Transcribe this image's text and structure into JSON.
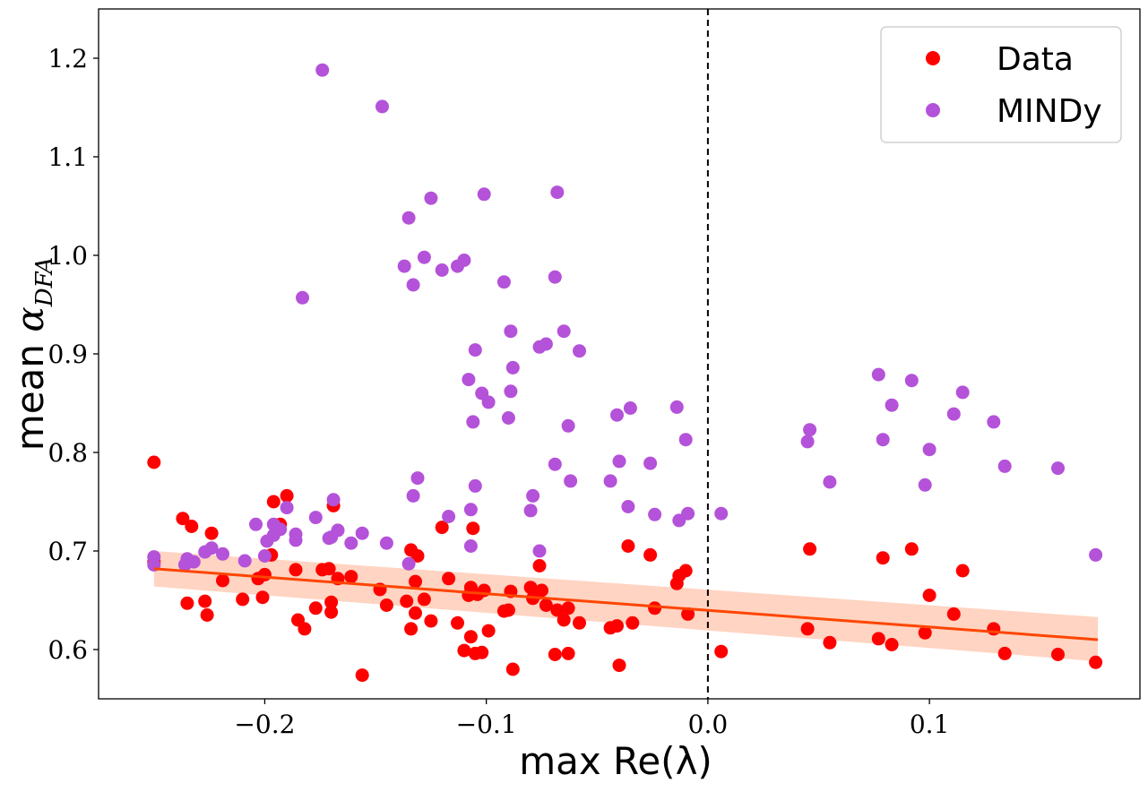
{
  "chart_data": {
    "type": "scatter",
    "title": "",
    "xlabel": "max Re(λ)",
    "ylabel_prefix": "mean ",
    "ylabel_symbol": "α",
    "ylabel_subscript": "DFA",
    "xlim": [
      -0.275,
      0.195
    ],
    "ylim": [
      0.55,
      1.25
    ],
    "xticks": [
      -0.2,
      -0.1,
      0.0,
      0.1
    ],
    "xtick_labels": [
      "−0.2",
      "−0.1",
      "0.0",
      "0.1"
    ],
    "yticks": [
      0.6,
      0.7,
      0.8,
      0.9,
      1.0,
      1.1,
      1.2
    ],
    "ytick_labels": [
      "0.6",
      "0.7",
      "0.8",
      "0.9",
      "1.0",
      "1.1",
      "1.2"
    ],
    "grid": false,
    "legend_position": "top-right",
    "vline": {
      "x": 0.0,
      "style": "dashed",
      "color": "#000000"
    },
    "fit": {
      "x_range": [
        -0.25,
        0.176
      ],
      "y_range": [
        0.682,
        0.61
      ],
      "ci_upper": [
        0.7,
        0.633
      ],
      "ci_lower": [
        0.664,
        0.588
      ],
      "line_color": "#ff4500",
      "band_color": "#ffc5ad"
    },
    "series": [
      {
        "name": "Data",
        "color": "#ff0000",
        "points": [
          [
            -0.25,
            0.79
          ],
          [
            -0.25,
            0.689
          ],
          [
            -0.237,
            0.733
          ],
          [
            -0.235,
            0.647
          ],
          [
            -0.233,
            0.725
          ],
          [
            -0.227,
            0.649
          ],
          [
            -0.226,
            0.635
          ],
          [
            -0.224,
            0.718
          ],
          [
            -0.219,
            0.67
          ],
          [
            -0.21,
            0.651
          ],
          [
            -0.203,
            0.672
          ],
          [
            -0.201,
            0.653
          ],
          [
            -0.2,
            0.676
          ],
          [
            -0.197,
            0.696
          ],
          [
            -0.196,
            0.75
          ],
          [
            -0.193,
            0.727
          ],
          [
            -0.19,
            0.756
          ],
          [
            -0.186,
            0.681
          ],
          [
            -0.185,
            0.63
          ],
          [
            -0.182,
            0.621
          ],
          [
            -0.177,
            0.642
          ],
          [
            -0.174,
            0.681
          ],
          [
            -0.171,
            0.682
          ],
          [
            -0.17,
            0.648
          ],
          [
            -0.17,
            0.638
          ],
          [
            -0.169,
            0.746
          ],
          [
            -0.167,
            0.672
          ],
          [
            -0.161,
            0.674
          ],
          [
            -0.156,
            0.574
          ],
          [
            -0.148,
            0.661
          ],
          [
            -0.145,
            0.645
          ],
          [
            -0.136,
            0.649
          ],
          [
            -0.134,
            0.701
          ],
          [
            -0.134,
            0.621
          ],
          [
            -0.132,
            0.669
          ],
          [
            -0.132,
            0.637
          ],
          [
            -0.131,
            0.695
          ],
          [
            -0.128,
            0.651
          ],
          [
            -0.125,
            0.629
          ],
          [
            -0.12,
            0.724
          ],
          [
            -0.117,
            0.672
          ],
          [
            -0.113,
            0.627
          ],
          [
            -0.11,
            0.599
          ],
          [
            -0.108,
            0.655
          ],
          [
            -0.107,
            0.613
          ],
          [
            -0.107,
            0.663
          ],
          [
            -0.106,
            0.723
          ],
          [
            -0.105,
            0.596
          ],
          [
            -0.104,
            0.656
          ],
          [
            -0.102,
            0.597
          ],
          [
            -0.101,
            0.66
          ],
          [
            -0.099,
            0.619
          ],
          [
            -0.092,
            0.639
          ],
          [
            -0.09,
            0.64
          ],
          [
            -0.089,
            0.659
          ],
          [
            -0.088,
            0.58
          ],
          [
            -0.08,
            0.663
          ],
          [
            -0.079,
            0.652
          ],
          [
            -0.077,
            0.657
          ],
          [
            -0.076,
            0.685
          ],
          [
            -0.075,
            0.66
          ],
          [
            -0.073,
            0.645
          ],
          [
            -0.069,
            0.595
          ],
          [
            -0.068,
            0.64
          ],
          [
            -0.065,
            0.63
          ],
          [
            -0.063,
            0.596
          ],
          [
            -0.063,
            0.642
          ],
          [
            -0.058,
            0.627
          ],
          [
            -0.044,
            0.622
          ],
          [
            -0.041,
            0.624
          ],
          [
            -0.04,
            0.584
          ],
          [
            -0.036,
            0.705
          ],
          [
            -0.034,
            0.627
          ],
          [
            -0.026,
            0.696
          ],
          [
            -0.024,
            0.642
          ],
          [
            -0.014,
            0.667
          ],
          [
            -0.013,
            0.675
          ],
          [
            -0.01,
            0.68
          ],
          [
            -0.009,
            0.636
          ],
          [
            0.006,
            0.598
          ],
          [
            0.045,
            0.621
          ],
          [
            0.046,
            0.702
          ],
          [
            0.055,
            0.607
          ],
          [
            0.077,
            0.611
          ],
          [
            0.079,
            0.693
          ],
          [
            0.083,
            0.605
          ],
          [
            0.092,
            0.702
          ],
          [
            0.098,
            0.617
          ],
          [
            0.1,
            0.655
          ],
          [
            0.111,
            0.636
          ],
          [
            0.115,
            0.68
          ],
          [
            0.129,
            0.621
          ],
          [
            0.134,
            0.596
          ],
          [
            0.158,
            0.595
          ],
          [
            0.175,
            0.587
          ]
        ]
      },
      {
        "name": "MINDy",
        "color": "#b452d9",
        "points": [
          [
            -0.25,
            0.694
          ],
          [
            -0.25,
            0.686
          ],
          [
            -0.236,
            0.686
          ],
          [
            -0.235,
            0.692
          ],
          [
            -0.232,
            0.689
          ],
          [
            -0.227,
            0.699
          ],
          [
            -0.224,
            0.703
          ],
          [
            -0.219,
            0.697
          ],
          [
            -0.209,
            0.69
          ],
          [
            -0.204,
            0.727
          ],
          [
            -0.2,
            0.695
          ],
          [
            -0.199,
            0.71
          ],
          [
            -0.196,
            0.716
          ],
          [
            -0.196,
            0.727
          ],
          [
            -0.193,
            0.722
          ],
          [
            -0.19,
            0.744
          ],
          [
            -0.186,
            0.711
          ],
          [
            -0.186,
            0.717
          ],
          [
            -0.183,
            0.957
          ],
          [
            -0.177,
            0.734
          ],
          [
            -0.174,
            1.188
          ],
          [
            -0.171,
            0.713
          ],
          [
            -0.17,
            0.714
          ],
          [
            -0.169,
            0.752
          ],
          [
            -0.167,
            0.721
          ],
          [
            -0.161,
            0.708
          ],
          [
            -0.156,
            0.718
          ],
          [
            -0.147,
            1.151
          ],
          [
            -0.145,
            0.708
          ],
          [
            -0.137,
            0.989
          ],
          [
            -0.135,
            0.687
          ],
          [
            -0.135,
            1.038
          ],
          [
            -0.133,
            0.97
          ],
          [
            -0.133,
            0.756
          ],
          [
            -0.131,
            0.774
          ],
          [
            -0.128,
            0.998
          ],
          [
            -0.125,
            1.058
          ],
          [
            -0.12,
            0.985
          ],
          [
            -0.117,
            0.735
          ],
          [
            -0.113,
            0.989
          ],
          [
            -0.11,
            0.995
          ],
          [
            -0.108,
            0.874
          ],
          [
            -0.107,
            0.742
          ],
          [
            -0.107,
            0.705
          ],
          [
            -0.106,
            0.831
          ],
          [
            -0.105,
            0.904
          ],
          [
            -0.105,
            0.766
          ],
          [
            -0.102,
            0.86
          ],
          [
            -0.101,
            1.062
          ],
          [
            -0.099,
            0.851
          ],
          [
            -0.092,
            0.973
          ],
          [
            -0.09,
            0.835
          ],
          [
            -0.089,
            0.923
          ],
          [
            -0.089,
            0.862
          ],
          [
            -0.088,
            0.886
          ],
          [
            -0.08,
            0.741
          ],
          [
            -0.079,
            0.756
          ],
          [
            -0.076,
            0.7
          ],
          [
            -0.076,
            0.907
          ],
          [
            -0.073,
            0.91
          ],
          [
            -0.069,
            0.788
          ],
          [
            -0.069,
            0.978
          ],
          [
            -0.068,
            1.064
          ],
          [
            -0.065,
            0.923
          ],
          [
            -0.063,
            0.827
          ],
          [
            -0.062,
            0.771
          ],
          [
            -0.058,
            0.903
          ],
          [
            -0.044,
            0.771
          ],
          [
            -0.041,
            0.838
          ],
          [
            -0.04,
            0.791
          ],
          [
            -0.036,
            0.745
          ],
          [
            -0.035,
            0.845
          ],
          [
            -0.026,
            0.789
          ],
          [
            -0.024,
            0.737
          ],
          [
            -0.014,
            0.846
          ],
          [
            -0.013,
            0.731
          ],
          [
            -0.01,
            0.813
          ],
          [
            -0.009,
            0.738
          ],
          [
            0.006,
            0.738
          ],
          [
            0.045,
            0.811
          ],
          [
            0.046,
            0.823
          ],
          [
            0.055,
            0.77
          ],
          [
            0.077,
            0.879
          ],
          [
            0.079,
            0.813
          ],
          [
            0.083,
            0.848
          ],
          [
            0.092,
            0.873
          ],
          [
            0.098,
            0.767
          ],
          [
            0.1,
            0.803
          ],
          [
            0.111,
            0.839
          ],
          [
            0.115,
            0.861
          ],
          [
            0.129,
            0.831
          ],
          [
            0.134,
            0.786
          ],
          [
            0.158,
            0.784
          ],
          [
            0.175,
            0.696
          ]
        ]
      }
    ]
  }
}
